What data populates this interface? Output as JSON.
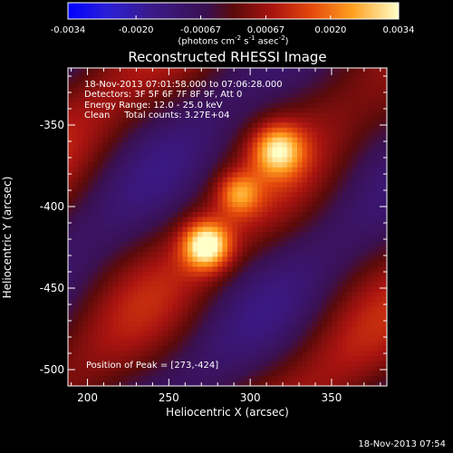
{
  "title": "Reconstructed RHESSI Image",
  "colorbar": {
    "ticks": [
      "-0.0034",
      "-0.0020",
      "-0.00067",
      "0.00067",
      "0.0020",
      "0.0034"
    ],
    "units": "(photons cm^-2 s^-1 asec^-2)",
    "units_parts": {
      "a": "(photons cm",
      "b": "-2",
      "c": " s",
      "d": "-1",
      "e": " asec",
      "f": "-2",
      "g": ")"
    },
    "range": [
      -0.0034,
      0.0034
    ]
  },
  "annotations": {
    "time": "18-Nov-2013 07:01:58.000 to 07:06:28.000",
    "detectors": "Detectors: 3F 5F 6F 7F 8F 9F, Att 0",
    "energy": "Energy Range: 12.0 - 25.0 keV",
    "clean": "Clean     Total counts: 3.27E+04",
    "peak": "Position of Peak = [273,-424]"
  },
  "timestamp": "18-Nov-2013 07:54",
  "chart_data": {
    "type": "heatmap",
    "title": "Reconstructed RHESSI Image",
    "xlabel": "Heliocentric X (arcsec)",
    "ylabel": "Heliocentric Y (arcsec)",
    "xlim": [
      188,
      384
    ],
    "ylim": [
      -510,
      -315
    ],
    "xticks": [
      200,
      250,
      300,
      350
    ],
    "yticks": [
      -350,
      -400,
      -450,
      -500
    ],
    "xtick_labels": [
      "200",
      "250",
      "300",
      "350"
    ],
    "ytick_labels": [
      "-350",
      "-400",
      "-450",
      "-500"
    ],
    "colormap": "fire",
    "zlim": [
      -0.0034,
      0.0034
    ],
    "sources": [
      {
        "x": 273,
        "y": -424,
        "peak": 0.0034,
        "sigma": 10
      },
      {
        "x": 317,
        "y": -365,
        "peak": 0.0026,
        "sigma": 11
      },
      {
        "x": 293,
        "y": -392,
        "peak": 0.0018,
        "sigma": 9
      }
    ],
    "peak_position": [
      273,
      -424
    ]
  }
}
